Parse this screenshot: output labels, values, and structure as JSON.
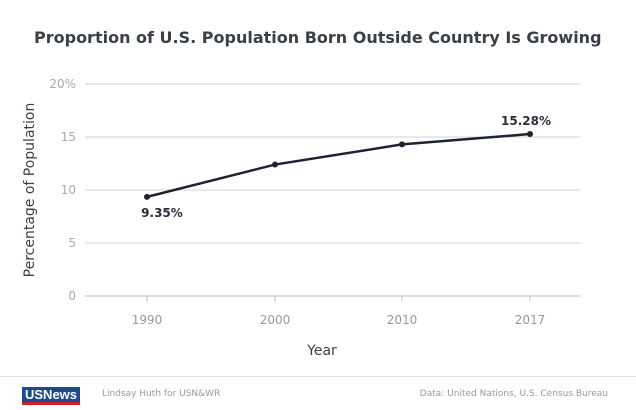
{
  "chart_data": {
    "type": "line",
    "title": "Proportion of U.S. Population Born Outside Country Is Growing",
    "xlabel": "Year",
    "ylabel": "Percentage of Population",
    "categories": [
      "1990",
      "2000",
      "2010",
      "2017"
    ],
    "values": [
      9.35,
      12.4,
      14.3,
      15.28
    ],
    "data_labels": {
      "0": "9.35%",
      "3": "15.28%"
    },
    "ylim": [
      0,
      20
    ],
    "yticks": [
      "0",
      "5",
      "10",
      "15",
      "20%"
    ],
    "grid": true,
    "line_color": "#1c2333"
  },
  "footer": {
    "logo": "USNews",
    "credit": "Lindsay Huth for USN&WR",
    "source": "Data: United Nations, U.S. Census Bureau"
  }
}
